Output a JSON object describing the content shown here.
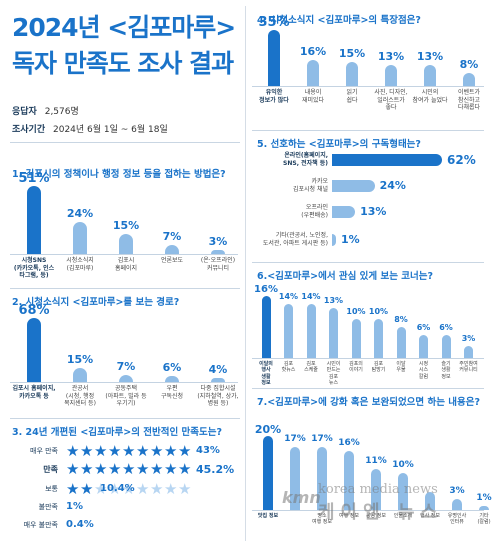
{
  "header": {
    "title_line1": "2024년 <김포마루>",
    "title_line2": "독자 만족도 조사 결과",
    "respondents_label": "응답자",
    "respondents_value": "2,576명",
    "period_label": "조사기간",
    "period_value": "2024년 6월 1일 ~ 6월 18일"
  },
  "colors": {
    "dark": "#1a73c9",
    "light": "#8fbce6",
    "star_empty": "#b8d6f2"
  },
  "watermark": {
    "text": "korea media news",
    "korean": "케이엠 뉴스",
    "logo": "kmn"
  },
  "chart_data": [
    {
      "id": "q1",
      "type": "bar",
      "title": "1. 김포시의 정책이나 행정 정보 등을 접하는 방법은?",
      "categories": [
        "시청SNS\n(카카오톡, 인스타그램, 등)",
        "시청소식지\n(김포마루)",
        "김포시\n홈페이지",
        "언론보도",
        "(온·오프라인)\n커뮤니티"
      ],
      "pct_labels": [
        "51%",
        "24%",
        "15%",
        "7%",
        "3%"
      ],
      "values": [
        51,
        24,
        15,
        7,
        3
      ]
    },
    {
      "id": "q2",
      "type": "bar",
      "title": "2. 시청소식지 <김포마루>를 보는 경로?",
      "categories": [
        "김포시 홈페이지,\n카카오톡 등",
        "관공서\n(시청, 행정\n복지센터 등)",
        "공동주택\n(아파트, 빌라 등\n우기기)",
        "우편\n구독신청",
        "다중 집합시설\n(지하철역, 상가,\n병원 등)"
      ],
      "pct_labels": [
        "68%",
        "15%",
        "7%",
        "6%",
        "4%"
      ],
      "values": [
        68,
        15,
        7,
        6,
        4
      ]
    },
    {
      "id": "q3",
      "type": "bar",
      "title": "3. 24년 개편된 <김포마루>의 전반적인 만족도는?",
      "categories": [
        "매우 만족",
        "만족",
        "보통",
        "불만족",
        "매우 불만족"
      ],
      "pct_labels": [
        "43%",
        "45.2%",
        "10.4%",
        "1%",
        "0.4%"
      ],
      "values": [
        43,
        45.2,
        10.4,
        1,
        0.4
      ]
    },
    {
      "id": "q4",
      "type": "bar",
      "title": "4. 시청소식지 <김포마루>의 특장점은?",
      "categories": [
        "유익한\n정보가 많다",
        "내용이\n재미있다",
        "읽기\n쉽다",
        "사진, 디자인,\n일러스트가\n좋다",
        "시민의\n참여가 늘었다",
        "이벤트가\n참신하고\n다채롭다"
      ],
      "pct_labels": [
        "35%",
        "16%",
        "15%",
        "13%",
        "13%",
        "8%"
      ],
      "values": [
        35,
        16,
        15,
        13,
        13,
        8
      ]
    },
    {
      "id": "q5",
      "type": "bar",
      "title": "5. 선호하는 <김포마루>의 구독형태는?",
      "categories": [
        "온라인(홈페이지,\nSNS, 전자책 등)",
        "카카오\n김포시청 채널",
        "오프라인\n(우편배송)",
        "기타(관공서, 노인정,\n도서관, 아파트 게시판 등)"
      ],
      "pct_labels": [
        "62%",
        "24%",
        "13%",
        "1%"
      ],
      "values": [
        62,
        24,
        13,
        1
      ]
    },
    {
      "id": "q6",
      "type": "bar",
      "title": "6.<김포마루>에서 관심 있게 보는 코너는?",
      "categories": [
        "이달의\n행사\n생활\n정보",
        "김포\n핫뉴스",
        "김포\n스케줄",
        "시민이\n만드는\n김포\n뉴스",
        "김포의\n이야기",
        "김포\n탐방기",
        "이달\n우물",
        "시정\n시스\n칼럼",
        "슬기\n생활\n정보",
        "주민참여\n커뮤니티"
      ],
      "pct_labels": [
        "16%",
        "14%",
        "14%",
        "13%",
        "10%",
        "10%",
        "8%",
        "6%",
        "6%",
        "3%"
      ],
      "values": [
        16,
        14,
        14,
        13,
        10,
        10,
        8,
        6,
        6,
        3
      ]
    },
    {
      "id": "q7",
      "type": "bar",
      "title": "7.<김포마루>에 강화 혹은 보완되었으면 하는 내용은?",
      "categories": [
        "맛집 정보",
        "",
        "명소\n여행 정보",
        "여행 정보",
        "공공 정보",
        "인물소개",
        "행사 정보",
        "유명인사\n인터뷰",
        "기타\n(칼럼)"
      ],
      "pct_labels": [
        "20%",
        "17%",
        "17%",
        "16%",
        "11%",
        "10%",
        "",
        "3%",
        "1%"
      ],
      "values": [
        20,
        17,
        17,
        16,
        11,
        10,
        5,
        3,
        1
      ]
    }
  ]
}
